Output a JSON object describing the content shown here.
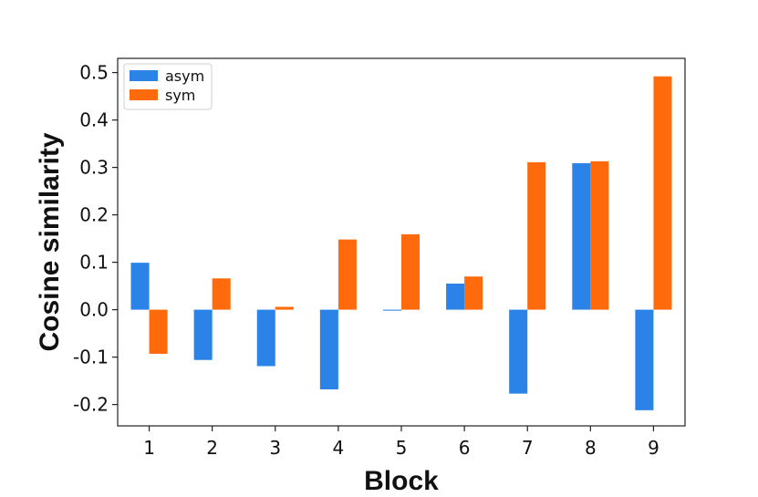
{
  "chart_data": {
    "type": "bar",
    "title": "",
    "xlabel": "Block",
    "ylabel": "Cosine similarity",
    "categories": [
      "1",
      "2",
      "3",
      "4",
      "5",
      "6",
      "7",
      "8",
      "9"
    ],
    "series": [
      {
        "name": "asym",
        "color": "#2b83e8",
        "values": [
          0.099,
          -0.106,
          -0.119,
          -0.168,
          -0.002,
          0.055,
          -0.177,
          0.309,
          -0.212
        ]
      },
      {
        "name": "sym",
        "color": "#ff6a0d",
        "values": [
          -0.093,
          0.066,
          0.006,
          0.148,
          0.159,
          0.07,
          0.311,
          0.313,
          0.492
        ]
      }
    ],
    "ylim": [
      -0.245,
      0.53
    ],
    "yticks": [
      -0.2,
      -0.1,
      0.0,
      0.1,
      0.2,
      0.3,
      0.4,
      0.5
    ],
    "ytick_labels": [
      "-0.2",
      "-0.1",
      "0.0",
      "0.1",
      "0.2",
      "0.3",
      "0.4",
      "0.5"
    ],
    "grid": false,
    "legend_position": "top-left"
  }
}
